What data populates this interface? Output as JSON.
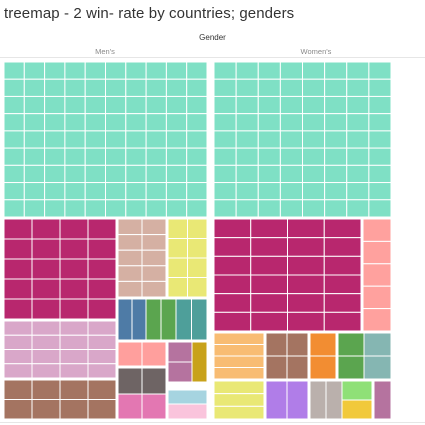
{
  "title": "treemap - 2 win- rate by countries; genders",
  "chart_data": {
    "type": "treemap",
    "column_header": "Gender",
    "columns": [
      {
        "name": "Men's",
        "groups": [
          {
            "color": "#7fe0c5",
            "weight": 52
          },
          {
            "color": "#b8276e",
            "weight": 16
          },
          {
            "color": "#d5b0a3",
            "weight": 4
          },
          {
            "color": "#e9e875",
            "weight": 4
          },
          {
            "color": "#d9a7c9",
            "weight": 4.5
          },
          {
            "color": "#4e7ba6",
            "weight": 1.3
          },
          {
            "color": "#5ba54f",
            "weight": 1.3
          },
          {
            "color": "#4e9f9a",
            "weight": 1.3
          },
          {
            "color": "#a47461",
            "weight": 3.5
          },
          {
            "color": "#ff9f9d",
            "weight": 1.6
          },
          {
            "color": "#b5739f",
            "weight": 1.2
          },
          {
            "color": "#6e6464",
            "weight": 1.2
          },
          {
            "color": "#c8a21a",
            "weight": 0.7
          },
          {
            "color": "#e377b2",
            "weight": 1.1
          },
          {
            "color": "#a6d4e0",
            "weight": 0.5
          },
          {
            "color": "#fac4dc",
            "weight": 0.5
          }
        ]
      },
      {
        "name": "Women's",
        "groups": [
          {
            "color": "#7fe0c5",
            "weight": 52
          },
          {
            "color": "#b8276e",
            "weight": 17
          },
          {
            "color": "#ffa19e",
            "weight": 3.5
          },
          {
            "color": "#f8bc73",
            "weight": 2.6
          },
          {
            "color": "#e9e875",
            "weight": 1.8
          },
          {
            "color": "#a47461",
            "weight": 2.1
          },
          {
            "color": "#f28d32",
            "weight": 1.2
          },
          {
            "color": "#5ba54f",
            "weight": 1.2
          },
          {
            "color": "#85b6b2",
            "weight": 1.5
          },
          {
            "color": "#b07de8",
            "weight": 1.6
          },
          {
            "color": "#bab0ac",
            "weight": 0.8
          },
          {
            "color": "#8fe077",
            "weight": 0.6
          },
          {
            "color": "#f1c93b",
            "weight": 0.6
          },
          {
            "color": "#b5739f",
            "weight": 0.5
          }
        ]
      }
    ]
  }
}
